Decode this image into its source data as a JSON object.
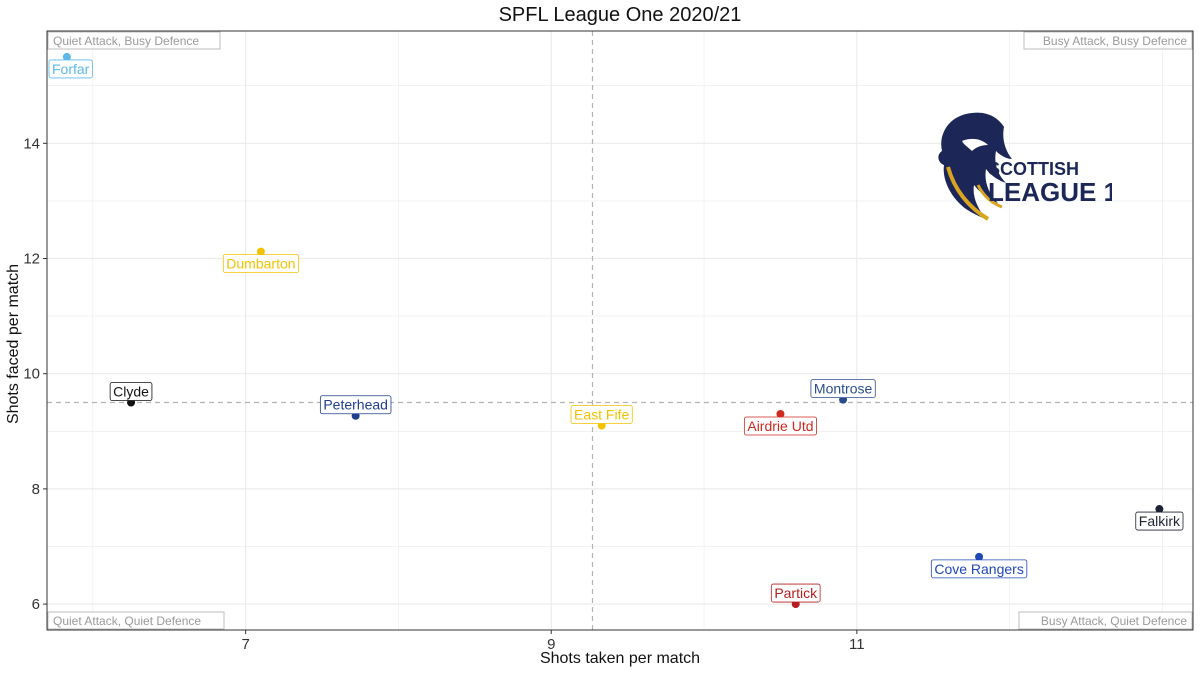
{
  "chart_data": {
    "type": "scatter",
    "title": "SPFL League One 2020/21",
    "xlabel": "Shots taken per match",
    "ylabel": "Shots faced per match",
    "xlim": [
      5.7,
      13.2
    ],
    "ylim": [
      5.55,
      15.95
    ],
    "x_ticks": [
      7,
      9,
      11
    ],
    "y_ticks": [
      6,
      8,
      10,
      12,
      14
    ],
    "x_reference": 9.27,
    "y_reference": 9.5,
    "grid": true,
    "quadrant_labels": {
      "top_left": "Quiet Attack, Busy Defence",
      "top_right": "Busy Attack, Busy Defence",
      "bottom_left": "Quiet Attack, Quiet Defence",
      "bottom_right": "Busy Attack, Quiet Defence"
    },
    "points": [
      {
        "name": "Forfar",
        "x": 5.83,
        "y": 15.5,
        "color": "#5bb8e8",
        "label_pos": "below"
      },
      {
        "name": "Dumbarton",
        "x": 7.1,
        "y": 12.12,
        "color": "#f2c200",
        "label_pos": "below"
      },
      {
        "name": "Clyde",
        "x": 6.25,
        "y": 9.5,
        "color": "#111111",
        "label_pos": "above"
      },
      {
        "name": "Peterhead",
        "x": 7.72,
        "y": 9.27,
        "color": "#1f3e8c",
        "label_pos": "above"
      },
      {
        "name": "East Fife",
        "x": 9.33,
        "y": 9.1,
        "color": "#f2c200",
        "label_pos": "above"
      },
      {
        "name": "Airdrie Utd",
        "x": 10.5,
        "y": 9.3,
        "color": "#cc2a20",
        "label_pos": "below"
      },
      {
        "name": "Montrose",
        "x": 10.91,
        "y": 9.55,
        "color": "#2b4b8c",
        "label_pos": "above"
      },
      {
        "name": "Falkirk",
        "x": 12.98,
        "y": 7.65,
        "color": "#1c2233",
        "label_pos": "below"
      },
      {
        "name": "Cove Rangers",
        "x": 11.8,
        "y": 6.82,
        "color": "#1f48b5",
        "label_pos": "below"
      },
      {
        "name": "Partick",
        "x": 10.6,
        "y": 6.0,
        "color": "#b51e1e",
        "label_pos": "above"
      }
    ]
  },
  "logo": {
    "icon": "lion-icon",
    "line1": "SCOTTISH",
    "line2": "LEAGUE 1"
  },
  "colors": {
    "grid": "#ebebeb",
    "reference_line": "#b3b3b3",
    "panel_border": "#333333",
    "logo_navy": "#1d2757",
    "logo_gold": "#d9a520"
  }
}
